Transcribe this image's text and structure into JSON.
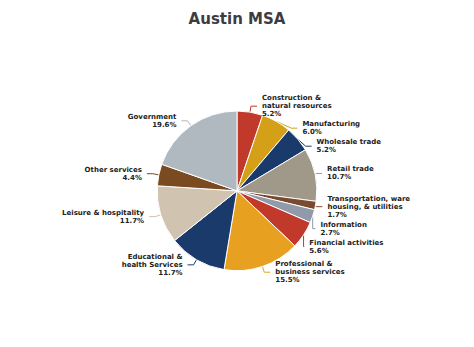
{
  "chart_data": {
    "type": "pie",
    "title": "Austin MSA",
    "categories": [
      "Construction &\nnatural resources\n5.2%",
      "Manufacturing\n6.0%",
      "Wholesale trade\n5.2%",
      "Retail trade\n10.7%",
      "Transportation, ware\nhousing, & utilities\n1.7%",
      "Information\n2.7%",
      "Financial activities\n5.6%",
      "Professional &\nbusiness services\n15.5%",
      "Educational &\nhealth Services\n11.7%",
      "Leisure & hospitality\n11.7%",
      "Other services\n4.4%",
      "Government\n19.6%"
    ],
    "values": [
      5.2,
      6.0,
      5.2,
      10.7,
      1.7,
      2.7,
      5.6,
      15.5,
      11.7,
      11.7,
      4.4,
      19.6
    ],
    "colors": [
      "#c0392b",
      "#d4a017",
      "#1a3a6b",
      "#a09888",
      "#7a4a30",
      "#909aaa",
      "#c0392b",
      "#e8a020",
      "#1a3a6b",
      "#d0c4b0",
      "#7a4a20",
      "#b0b8c0"
    ],
    "legend": false
  }
}
